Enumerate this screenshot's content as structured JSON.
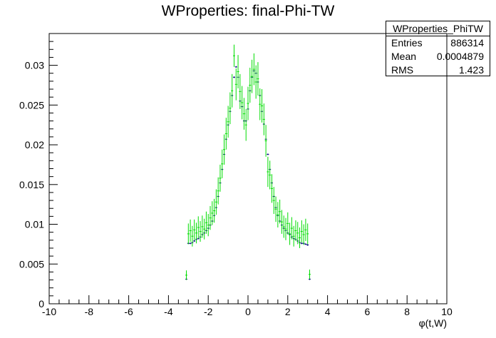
{
  "title": "WProperties: final-Phi-TW",
  "stats": {
    "name": "WProperties_PhiTW",
    "rows": [
      {
        "key": "Entries",
        "value": "886314"
      },
      {
        "key": "Mean",
        "value": "0.0004879"
      },
      {
        "key": "RMS",
        "value": "1.423"
      }
    ]
  },
  "colors": {
    "series_a": "#000080",
    "series_b": "#00dd00",
    "axis": "#000000"
  },
  "chart_data": {
    "type": "scatter",
    "title": "WProperties: final-Phi-TW",
    "xlabel": "φ(t,W)",
    "ylabel": "",
    "xlim": [
      -10,
      10
    ],
    "ylim": [
      0,
      0.034
    ],
    "grid": false,
    "xticks": [
      "-10",
      "-8",
      "-6",
      "-4",
      "-2",
      "0",
      "2",
      "4",
      "6",
      "8",
      "10"
    ],
    "yticks": [
      "0",
      "0.005",
      "0.01",
      "0.015",
      "0.02",
      "0.025",
      "0.03"
    ],
    "x": [
      -3.1,
      -3.0,
      -2.9,
      -2.8,
      -2.7,
      -2.6,
      -2.5,
      -2.4,
      -2.3,
      -2.2,
      -2.1,
      -2.0,
      -1.9,
      -1.8,
      -1.7,
      -1.6,
      -1.5,
      -1.4,
      -1.3,
      -1.2,
      -1.1,
      -1.0,
      -0.9,
      -0.8,
      -0.7,
      -0.6,
      -0.5,
      -0.4,
      -0.3,
      -0.2,
      -0.1,
      0.0,
      0.1,
      0.2,
      0.3,
      0.4,
      0.5,
      0.6,
      0.7,
      0.8,
      0.9,
      1.0,
      1.1,
      1.2,
      1.3,
      1.4,
      1.5,
      1.6,
      1.7,
      1.8,
      1.9,
      2.0,
      2.1,
      2.2,
      2.3,
      2.4,
      2.5,
      2.6,
      2.7,
      2.8,
      2.9,
      3.0,
      3.1
    ],
    "series": [
      {
        "values": [
          0.0031,
          0.0076,
          0.0076,
          0.0077,
          0.0079,
          0.0081,
          0.0082,
          0.0084,
          0.0087,
          0.0089,
          0.0092,
          0.0095,
          0.0099,
          0.0104,
          0.0111,
          0.0121,
          0.0135,
          0.0152,
          0.0169,
          0.0188,
          0.0207,
          0.0225,
          0.0242,
          0.0262,
          0.0285,
          0.0298,
          0.0285,
          0.0255,
          0.0248,
          0.023,
          0.023,
          0.0245,
          0.0268,
          0.0285,
          0.0293,
          0.029,
          0.0279,
          0.0262,
          0.0242,
          0.0226,
          0.0207,
          0.0188,
          0.0169,
          0.0152,
          0.0135,
          0.0121,
          0.0111,
          0.0104,
          0.0099,
          0.0095,
          0.0092,
          0.0089,
          0.0087,
          0.0084,
          0.0082,
          0.0081,
          0.0079,
          0.0077,
          0.0076,
          0.0076,
          0.0075,
          0.0074,
          0.0031
        ],
        "errors": [
          0.0001,
          0.0001,
          0.0001,
          0.0001,
          0.0001,
          0.0001,
          0.0001,
          0.0001,
          0.0001,
          0.0001,
          0.0001,
          0.0001,
          0.0001,
          0.0001,
          0.0001,
          0.0001,
          0.0001,
          0.0001,
          0.0001,
          0.0001,
          0.0001,
          0.0001,
          0.0001,
          0.0001,
          0.0001,
          0.0001,
          0.0001,
          0.0001,
          0.0001,
          0.0001,
          0.0001,
          0.0001,
          0.0001,
          0.0001,
          0.0001,
          0.0001,
          0.0001,
          0.0001,
          0.0001,
          0.0001,
          0.0001,
          0.0001,
          0.0001,
          0.0001,
          0.0001,
          0.0001,
          0.0001,
          0.0001,
          0.0001,
          0.0001,
          0.0001,
          0.0001,
          0.0001,
          0.0001,
          0.0001,
          0.0001,
          0.0001,
          0.0001,
          0.0001,
          0.0001,
          0.0001,
          0.0001,
          0.0001
        ]
      },
      {
        "values": [
          0.0036,
          0.0088,
          0.0092,
          0.0085,
          0.0093,
          0.0089,
          0.0096,
          0.0091,
          0.0097,
          0.0094,
          0.0102,
          0.0099,
          0.0108,
          0.0114,
          0.0117,
          0.0128,
          0.0142,
          0.0158,
          0.0176,
          0.0194,
          0.0214,
          0.0229,
          0.0246,
          0.0268,
          0.0312,
          0.0276,
          0.0292,
          0.0267,
          0.0253,
          0.0239,
          0.0225,
          0.0252,
          0.0275,
          0.0286,
          0.0295,
          0.0279,
          0.0283,
          0.0251,
          0.0249,
          0.0232,
          0.0205,
          0.0166,
          0.0162,
          0.0145,
          0.013,
          0.0119,
          0.0112,
          0.0116,
          0.0103,
          0.0097,
          0.0094,
          0.0101,
          0.0088,
          0.0095,
          0.0085,
          0.0092,
          0.0089,
          0.0083,
          0.0091,
          0.0087,
          0.0093,
          0.0088,
          0.0037
        ],
        "errors": [
          0.0006,
          0.0013,
          0.0014,
          0.0013,
          0.0013,
          0.0013,
          0.0014,
          0.0013,
          0.0014,
          0.0013,
          0.0014,
          0.0014,
          0.0015,
          0.0015,
          0.0015,
          0.0016,
          0.0017,
          0.0017,
          0.0018,
          0.0019,
          0.002,
          0.002,
          0.002,
          0.0021,
          0.0014,
          0.002,
          0.0021,
          0.0022,
          0.0021,
          0.002,
          0.002,
          0.0021,
          0.0022,
          0.0021,
          0.002,
          0.0021,
          0.0021,
          0.002,
          0.0021,
          0.002,
          0.002,
          0.0019,
          0.0018,
          0.0018,
          0.0017,
          0.0016,
          0.0016,
          0.0015,
          0.0015,
          0.0014,
          0.0014,
          0.0014,
          0.0014,
          0.0014,
          0.0013,
          0.0013,
          0.0014,
          0.0013,
          0.0014,
          0.0013,
          0.0014,
          0.0013,
          0.0006
        ]
      }
    ]
  }
}
